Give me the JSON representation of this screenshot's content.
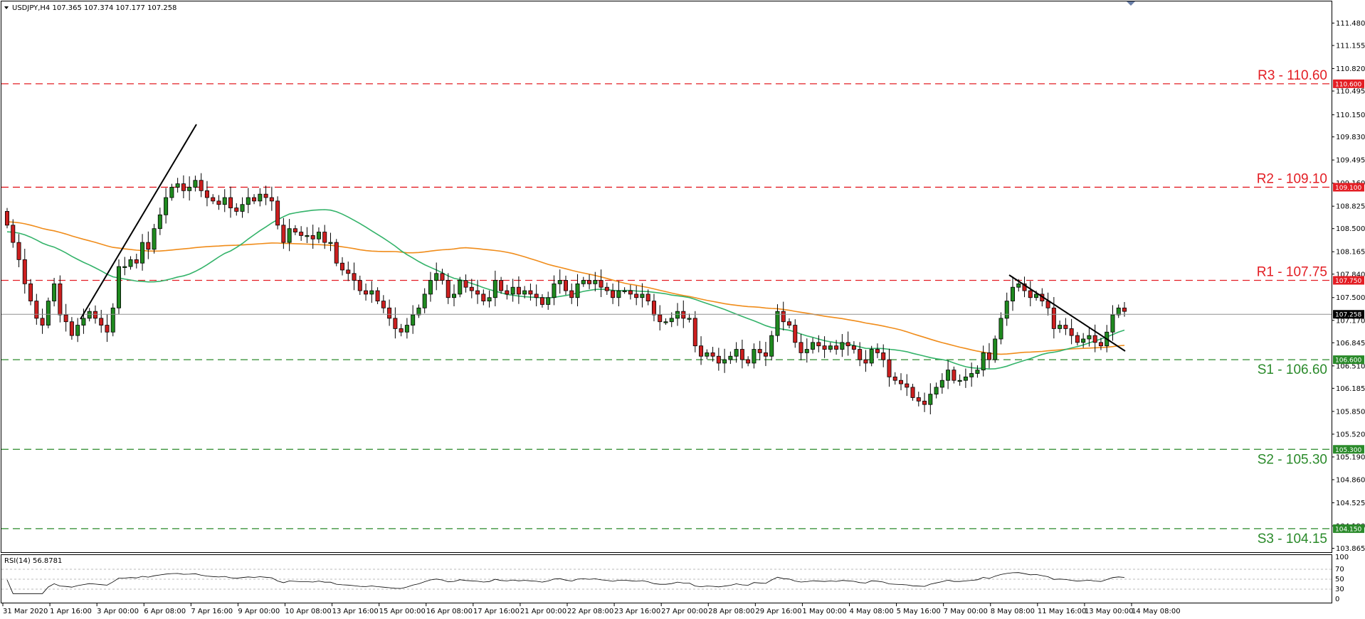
{
  "symbol_info": "USDJPY,H4  107.365 107.374 107.177 107.258",
  "rsi_label": "RSI(14) 56.8781",
  "colors": {
    "bull": "#1f8a1f",
    "bear": "#cc1f1f",
    "resistance": "#e31e24",
    "support": "#2a8a2a",
    "ma_fast": "#34b36a",
    "ma_slow": "#f08c1a",
    "price_line": "#909090"
  },
  "chart_data": {
    "type": "candlestick",
    "ylim": [
      103.85,
      111.66
    ],
    "price_ticks": [
      "111.480",
      "111.155",
      "110.820",
      "110.495",
      "110.150",
      "109.830",
      "109.495",
      "109.160",
      "108.825",
      "108.500",
      "108.165",
      "107.840",
      "107.500",
      "107.170",
      "106.845",
      "106.510",
      "106.185",
      "105.850",
      "105.520",
      "105.190",
      "104.860",
      "104.525",
      "104.190",
      "103.865"
    ],
    "current_price": "107.258",
    "levels": [
      {
        "id": "r3",
        "label": "R3 - 110.60",
        "value": 110.6,
        "badge": "110.600",
        "kind": "resistance"
      },
      {
        "id": "r2",
        "label": "R2 - 109.10",
        "value": 109.1,
        "badge": "109.100",
        "kind": "resistance"
      },
      {
        "id": "r1",
        "label": "R1 - 107.75",
        "value": 107.75,
        "badge": "107.750",
        "kind": "resistance"
      },
      {
        "id": "s1",
        "label": "S1 - 106.60",
        "value": 106.6,
        "badge": "106.600",
        "kind": "support"
      },
      {
        "id": "s2",
        "label": "S2 - 105.30",
        "value": 105.3,
        "badge": "105.300",
        "kind": "support"
      },
      {
        "id": "s3",
        "label": "S3 - 104.15",
        "value": 104.15,
        "badge": "104.150",
        "kind": "support"
      }
    ],
    "x_labels": [
      "31 Mar 2020",
      "1 Apr 16:00",
      "3 Apr 00:00",
      "6 Apr 08:00",
      "7 Apr 16:00",
      "9 Apr 00:00",
      "10 Apr 08:00",
      "13 Apr 16:00",
      "15 Apr 00:00",
      "16 Apr 08:00",
      "17 Apr 16:00",
      "21 Apr 00:00",
      "22 Apr 08:00",
      "23 Apr 16:00",
      "27 Apr 00:00",
      "28 Apr 08:00",
      "29 Apr 16:00",
      "1 May 00:00",
      "4 May 08:00",
      "5 May 16:00",
      "7 May 00:00",
      "8 May 08:00",
      "11 May 16:00",
      "13 May 00:00",
      "14 May 08:00"
    ],
    "closes": [
      108.55,
      108.3,
      108.05,
      107.7,
      107.45,
      107.2,
      107.1,
      107.45,
      107.7,
      107.25,
      107.15,
      106.95,
      107.1,
      107.2,
      107.3,
      107.2,
      107.1,
      107.0,
      107.35,
      107.95,
      107.95,
      108.05,
      108.0,
      108.3,
      108.2,
      108.5,
      108.7,
      108.95,
      109.1,
      109.15,
      109.05,
      109.1,
      109.2,
      109.05,
      108.95,
      108.9,
      108.85,
      108.95,
      108.8,
      108.75,
      108.85,
      108.95,
      108.9,
      109.0,
      108.95,
      108.9,
      108.55,
      108.3,
      108.5,
      108.45,
      108.4,
      108.4,
      108.35,
      108.45,
      108.3,
      108.3,
      108.0,
      107.9,
      107.85,
      107.75,
      107.6,
      107.55,
      107.6,
      107.45,
      107.35,
      107.2,
      107.05,
      107.0,
      107.1,
      107.25,
      107.35,
      107.55,
      107.75,
      107.85,
      107.75,
      107.5,
      107.55,
      107.75,
      107.65,
      107.6,
      107.55,
      107.45,
      107.5,
      107.75,
      107.6,
      107.55,
      107.65,
      107.55,
      107.6,
      107.55,
      107.5,
      107.4,
      107.5,
      107.7,
      107.75,
      107.6,
      107.5,
      107.7,
      107.75,
      107.7,
      107.75,
      107.65,
      107.6,
      107.5,
      107.6,
      107.6,
      107.55,
      107.5,
      107.55,
      107.45,
      107.25,
      107.15,
      107.15,
      107.2,
      107.3,
      107.2,
      107.2,
      106.8,
      106.65,
      106.7,
      106.65,
      106.55,
      106.6,
      106.65,
      106.75,
      106.6,
      106.55,
      106.75,
      106.7,
      106.65,
      106.95,
      107.3,
      107.15,
      107.1,
      106.85,
      106.7,
      106.75,
      106.85,
      106.8,
      106.75,
      106.8,
      106.75,
      106.85,
      106.8,
      106.75,
      106.6,
      106.55,
      106.75,
      106.7,
      106.6,
      106.35,
      106.3,
      106.25,
      106.2,
      106.05,
      106.0,
      105.95,
      106.1,
      106.2,
      106.3,
      106.45,
      106.3,
      106.3,
      106.35,
      106.4,
      106.45,
      106.7,
      106.6,
      106.9,
      107.2,
      107.45,
      107.65,
      107.7,
      107.6,
      107.5,
      107.55,
      107.45,
      107.35,
      107.05,
      107.1,
      107.05,
      106.95,
      106.85,
      106.9,
      106.95,
      106.85,
      106.8,
      107.0,
      107.25,
      107.35,
      107.3
    ]
  }
}
